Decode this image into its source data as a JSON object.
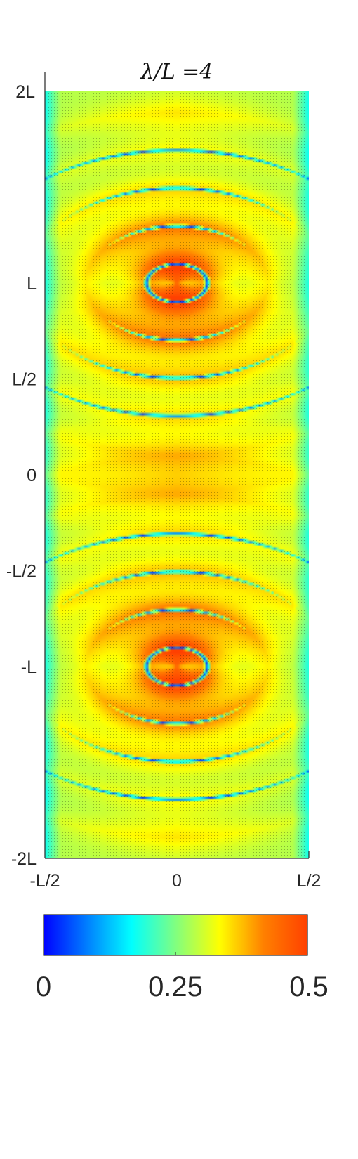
{
  "chart_data": {
    "type": "heatmap",
    "title": "λ/L =4",
    "xlabel": "",
    "ylabel": "",
    "x_ticks": [
      "-L/2",
      "0",
      "L/2"
    ],
    "y_ticks": [
      "2L",
      "L",
      "L/2",
      "0",
      "-L/2",
      "-L",
      "-2L"
    ],
    "xlim": [
      -0.5,
      0.5
    ],
    "ylim": [
      -2,
      2
    ],
    "x_units": "L",
    "y_units": "L",
    "grid": false,
    "colorbar": {
      "ticks": [
        "0",
        "0.25",
        "0.5"
      ],
      "range": [
        0,
        0.5
      ],
      "colormap": "jet",
      "colors": [
        "#0000ff",
        "#0080ff",
        "#00ffff",
        "#80ff80",
        "#ffff00",
        "#ff8000",
        "#ff4000"
      ],
      "placement": "bottom"
    },
    "sources": [
      {
        "x": 0,
        "y": 1,
        "peak": 0.5
      },
      {
        "x": 0,
        "y": -1,
        "peak": 0.5
      }
    ],
    "features": {
      "near_source_max": 0.48,
      "mid_band_value": 0.3,
      "background_value": 0.22,
      "null_value": 0.02
    }
  }
}
